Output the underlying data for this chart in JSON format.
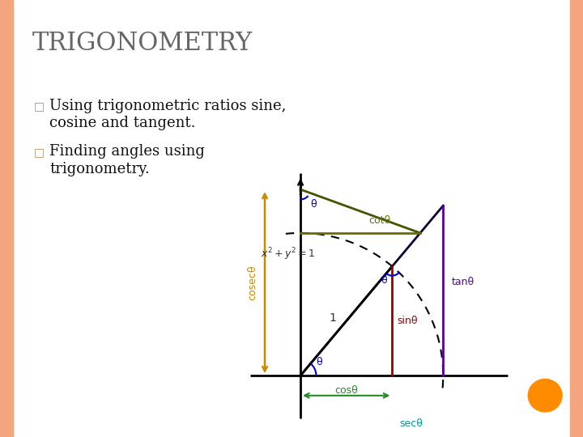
{
  "title": "TRIGONOMETRY",
  "bullet1_line1": "Using trigonometric ratios sine,",
  "bullet1_line2": "cosine and tangent.",
  "bullet2_line1": "Finding angles using",
  "bullet2_line2": "trigonometry.",
  "title_color": "#666666",
  "bg_color": "#ffffff",
  "border_color": "#f4a580",
  "theta_deg": 50,
  "colors": {
    "axis": "#000000",
    "unit_line": "#000000",
    "sin": "#990000",
    "cos": "#228B22",
    "tan": "#5500aa",
    "cot": "#6B6B00",
    "sec": "#009999",
    "cosec": "#cc8800",
    "dashed_circle": "#000000",
    "angle_arc": "#0000cc",
    "secant_line": "#330066",
    "csc_line": "#004400",
    "orange_dot": "#ff8c00"
  },
  "font_sizes": {
    "title": 22,
    "bullet": 13,
    "diagram_label": 9
  }
}
